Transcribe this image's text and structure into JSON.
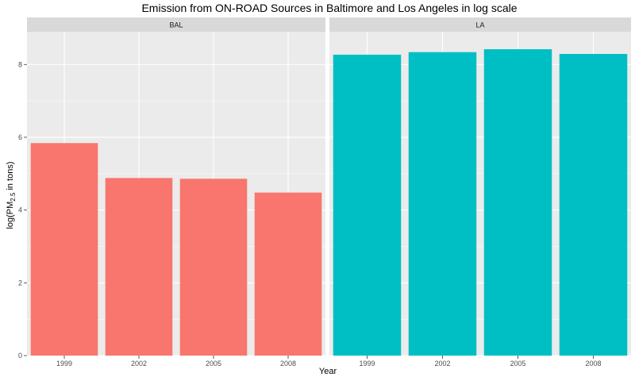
{
  "chart_data": {
    "type": "bar",
    "title": "Emission from ON-ROAD Sources in Baltimore and Los Angeles in log scale",
    "xlabel": "Year",
    "ylabel": {
      "prefix": "log(PM",
      "subscript": "2.5",
      "suffix": " in tons)"
    },
    "ylim": [
      0,
      8.9
    ],
    "yticks": [
      0,
      2,
      4,
      6,
      8
    ],
    "categories": [
      "1999",
      "2002",
      "2005",
      "2008"
    ],
    "grid": true,
    "panels": [
      {
        "strip": "BAL",
        "color": "#F8766D",
        "values": [
          5.84,
          4.88,
          4.86,
          4.48
        ]
      },
      {
        "strip": "LA",
        "color": "#00BFC4",
        "values": [
          8.27,
          8.34,
          8.42,
          8.29
        ]
      }
    ],
    "colors": {
      "panel_background": "#EBEBEB",
      "strip_background": "#D9D9D9",
      "grid_major": "#FFFFFF",
      "tick": "#333333"
    }
  }
}
